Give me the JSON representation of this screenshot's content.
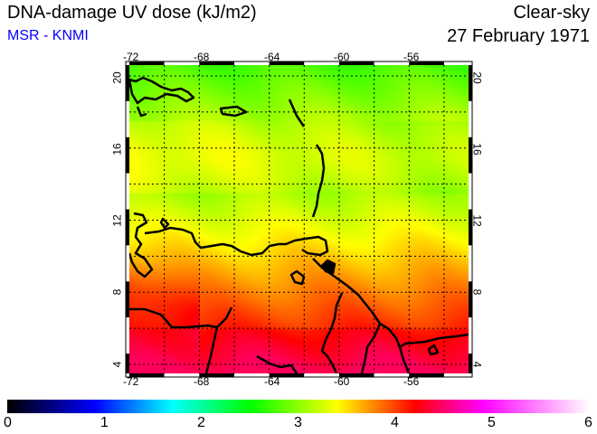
{
  "header": {
    "title": "DNA-damage UV dose (kJ/m2)",
    "source": "MSR - KNMI",
    "mode": "Clear-sky",
    "date": "27 February 1971"
  },
  "map": {
    "lon_range": [
      -72,
      -52.6
    ],
    "lat_range": [
      3.5,
      20.6
    ],
    "lon_labels": [
      "-72",
      "-68",
      "-64",
      "-60",
      "-56"
    ],
    "lat_labels": [
      "4",
      "8",
      "12",
      "16",
      "20"
    ],
    "region": "Caribbean and northern South America"
  },
  "colorbar": {
    "range": [
      0,
      6
    ],
    "labels": [
      "0",
      "1",
      "2",
      "3",
      "4",
      "5",
      "6"
    ],
    "stops": [
      [
        0,
        "#000000"
      ],
      [
        0.9,
        "#0000ff"
      ],
      [
        1.7,
        "#00ffff"
      ],
      [
        2.5,
        "#00ff00"
      ],
      [
        3.4,
        "#ffff00"
      ],
      [
        4.2,
        "#ff0000"
      ],
      [
        4.9,
        "#ff00ff"
      ],
      [
        6,
        "#ffffff"
      ]
    ]
  }
}
